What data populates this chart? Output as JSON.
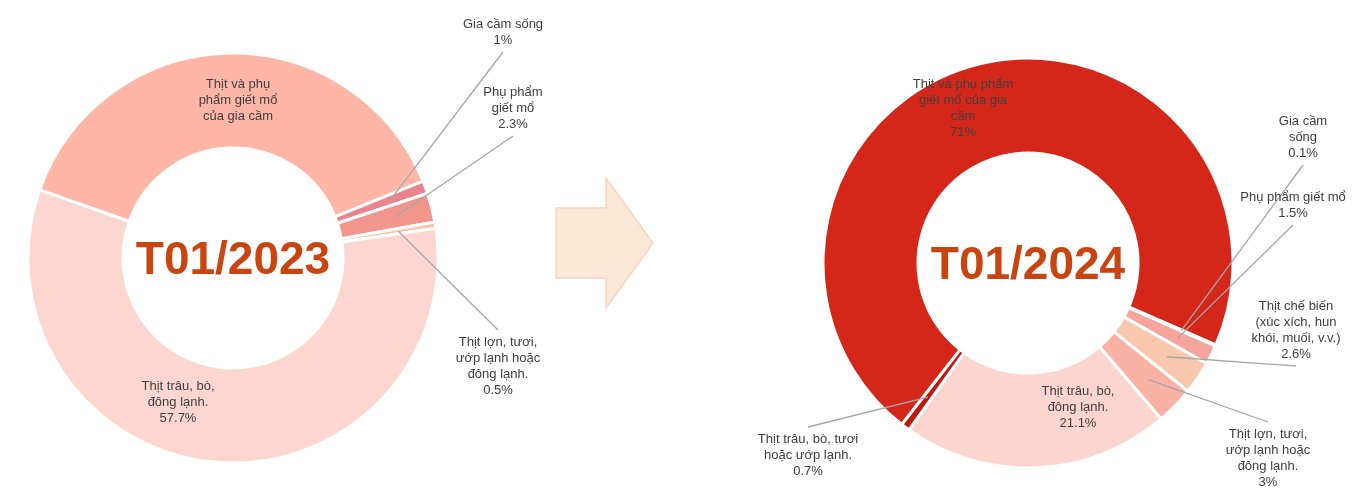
{
  "chart_data": [
    {
      "type": "donut",
      "title": "T01/2023",
      "categories": [
        "Thịt và phụ phẩm giết mổ của gia cầm",
        "Gia cầm sống",
        "Phụ phẩm giết mổ",
        "Thịt lợn, tươi, ướp lạnh hoặc đông lạnh.",
        "Thịt trâu, bò, đông lạnh."
      ],
      "values": [
        38.5,
        1,
        2.3,
        0.5,
        57.7
      ],
      "value_labels": [
        null,
        "1%",
        "2.3%",
        "0.5%",
        "57.7%"
      ],
      "colors": [
        "#ffb6a6",
        "#e8848a",
        "#f2958c",
        "#f9c4aa",
        "#fcd6cf"
      ]
    },
    {
      "type": "donut",
      "title": "T01/2024",
      "categories": [
        "Thịt và phụ phẩm giết mổ của gia cầm",
        "Gia cầm sống",
        "Phụ phẩm giết mổ",
        "Thịt chế biến (xúc xích, hun khói, muối, v.v.)",
        "Thịt lợn, tươi, ướp lạnh hoặc đông lạnh.",
        "Thịt trâu, bò, đông lạnh.",
        "Thịt trâu, bò, tươi hoặc ướp lạnh."
      ],
      "values": [
        71,
        0.1,
        1.5,
        2.6,
        3,
        21.1,
        0.7
      ],
      "value_labels": [
        "71%",
        "0.1%",
        "1.5%",
        "2.6%",
        "3%",
        "21.1%",
        "0.7%"
      ],
      "colors": [
        "#d42719",
        "#e46b5f",
        "#f5a59c",
        "#f9c7ae",
        "#f9b2a3",
        "#fbd5ce",
        "#c0180e"
      ]
    }
  ]
}
